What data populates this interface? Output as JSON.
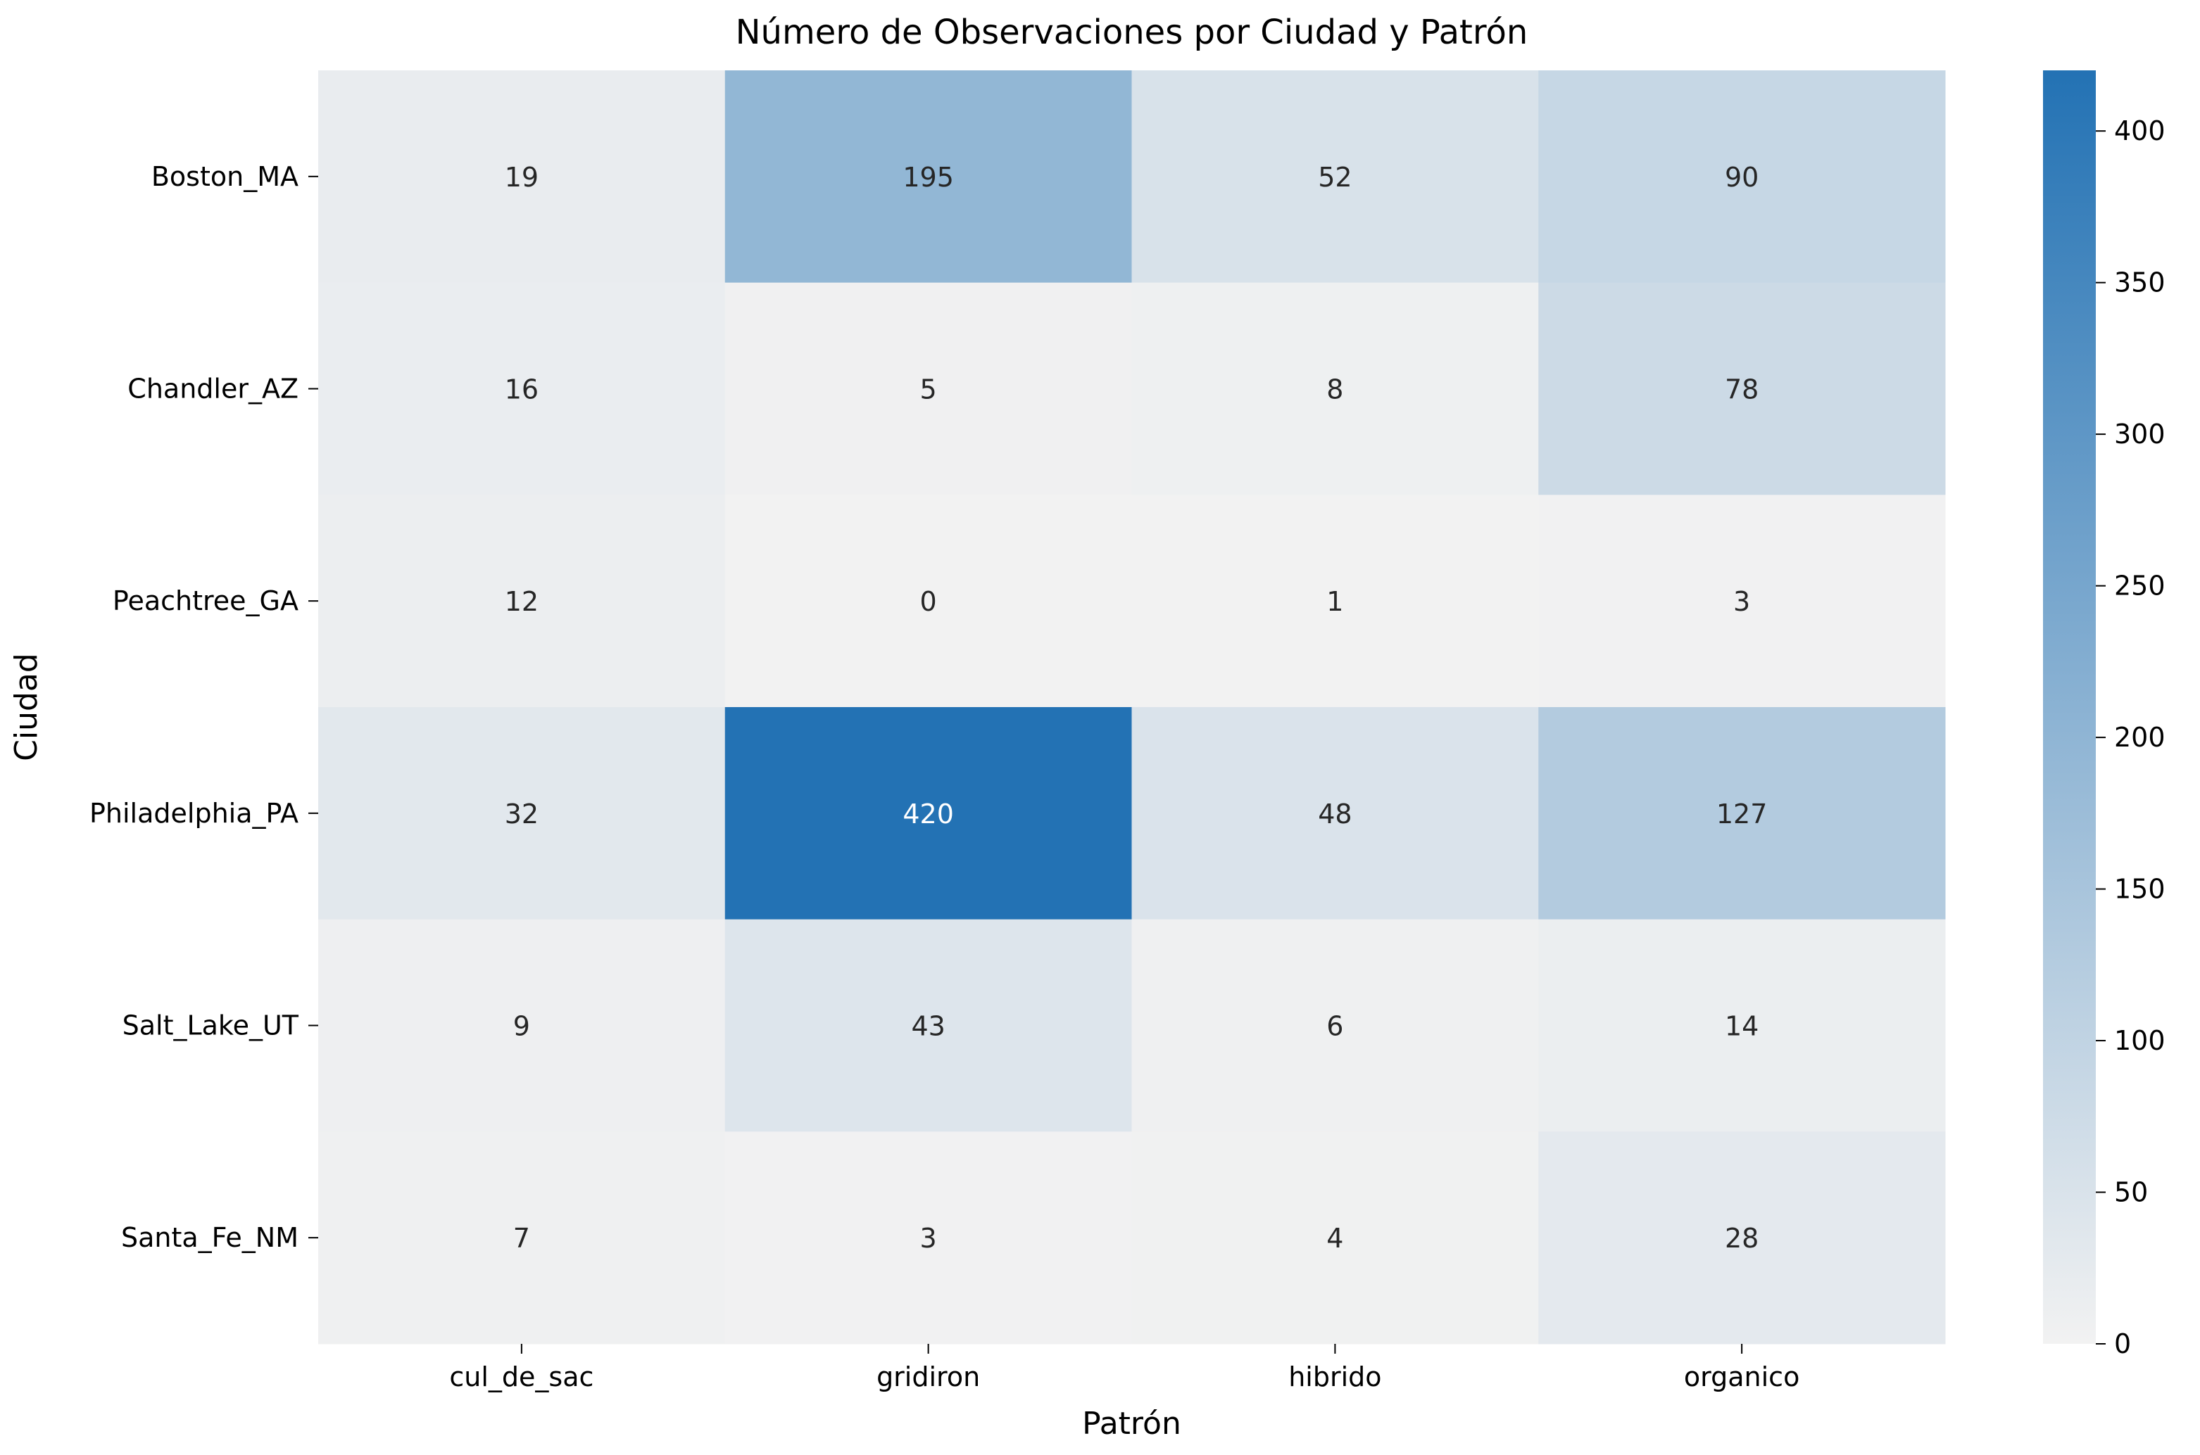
{
  "chart_data": {
    "type": "heatmap",
    "title": "Número de Observaciones por Ciudad y Patrón",
    "xlabel": "Patrón",
    "ylabel": "Ciudad",
    "x_categories": [
      "cul_de_sac",
      "gridiron",
      "hibrido",
      "organico"
    ],
    "y_categories": [
      "Boston_MA",
      "Chandler_AZ",
      "Peachtree_GA",
      "Philadelphia_PA",
      "Salt_Lake_UT",
      "Santa_Fe_NM"
    ],
    "values": [
      [
        19,
        195,
        52,
        90
      ],
      [
        16,
        5,
        8,
        78
      ],
      [
        12,
        0,
        1,
        3
      ],
      [
        32,
        420,
        48,
        127
      ],
      [
        9,
        43,
        6,
        14
      ],
      [
        7,
        3,
        4,
        28
      ]
    ],
    "colorbar": {
      "range": [
        0,
        420
      ],
      "ticks": [
        0,
        50,
        100,
        150,
        200,
        250,
        300,
        350,
        400
      ],
      "color_low": "#f2f2f2",
      "color_high": "#2372b4"
    },
    "grid": false
  }
}
